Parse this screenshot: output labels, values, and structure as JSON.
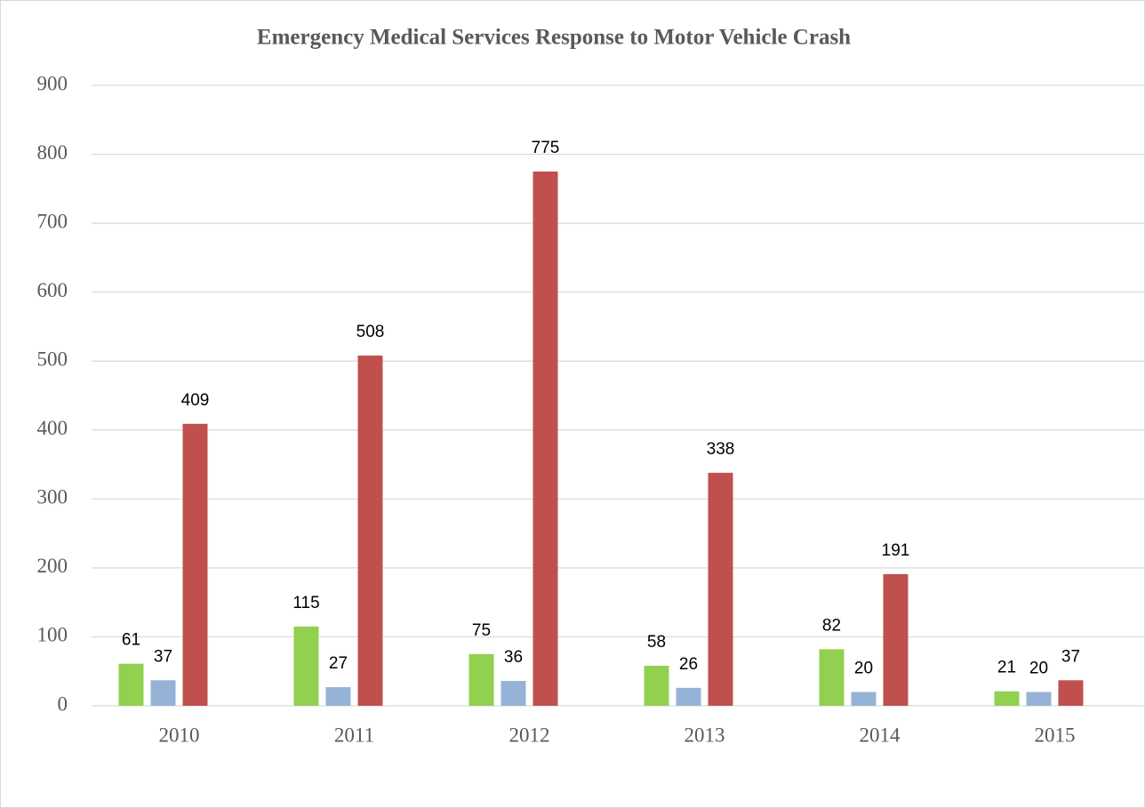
{
  "chart_data": {
    "type": "bar",
    "title": "Emergency Medical Services Response to Motor Vehicle Crash",
    "categories": [
      "2010",
      "2011",
      "2012",
      "2013",
      "2014",
      "2015"
    ],
    "series": [
      {
        "color": "#92d050",
        "values": [
          61,
          115,
          75,
          58,
          82,
          21
        ]
      },
      {
        "color": "#95b3d7",
        "values": [
          37,
          27,
          36,
          26,
          20,
          20
        ]
      },
      {
        "color": "#c0504d",
        "values": [
          409,
          508,
          775,
          338,
          191,
          37
        ]
      }
    ],
    "ylim": [
      0,
      900
    ],
    "yticks": [
      0,
      100,
      200,
      300,
      400,
      500,
      600,
      700,
      800,
      900
    ],
    "grid": true
  }
}
